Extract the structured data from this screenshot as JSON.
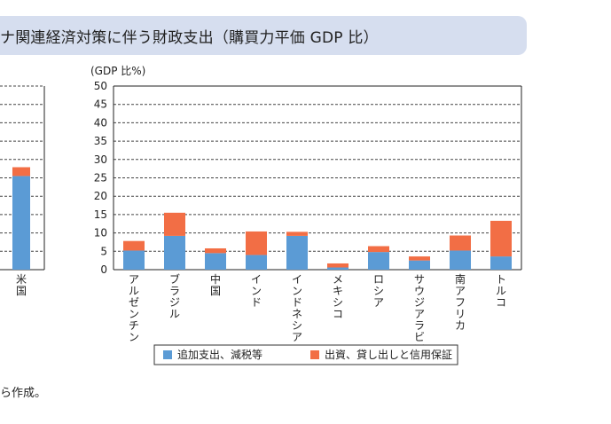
{
  "title": "ナ関連経済対策に伴う財政支出（購買力平価 GDP 比）",
  "note": "ら作成。",
  "colors": {
    "blue": "#5b9bd5",
    "orange": "#f26e45"
  },
  "chart_data": [
    {
      "type": "bar",
      "stacked": true,
      "partial": true,
      "categories": [
        "米国"
      ],
      "series": [
        {
          "name": "追加支出、減税等",
          "values": [
            25.5
          ]
        },
        {
          "name": "出資、貸し出しと信用保証",
          "values": [
            2.4
          ]
        }
      ],
      "ylim": [
        0,
        50
      ]
    },
    {
      "type": "bar",
      "stacked": true,
      "ylabel": "(GDP 比%)",
      "ylim": [
        0,
        50
      ],
      "yticks": [
        0,
        5,
        10,
        15,
        20,
        25,
        30,
        35,
        40,
        45,
        50
      ],
      "grid": true,
      "legend": "bottom",
      "categories": [
        "アルゼンチン",
        "ブラジル",
        "中国",
        "インド",
        "インドネシア",
        "メキシコ",
        "ロシア",
        "サウジアラビア",
        "南アフリカ",
        "トルコ"
      ],
      "series": [
        {
          "name": "追加支出、減税等",
          "values": [
            5.2,
            9.2,
            4.5,
            4.0,
            9.2,
            0.6,
            4.8,
            2.5,
            5.2,
            3.6
          ]
        },
        {
          "name": "出資、貸し出しと信用保証",
          "values": [
            2.6,
            6.3,
            1.3,
            6.4,
            1.1,
            1.1,
            1.6,
            1.1,
            4.1,
            9.7
          ]
        }
      ]
    }
  ]
}
